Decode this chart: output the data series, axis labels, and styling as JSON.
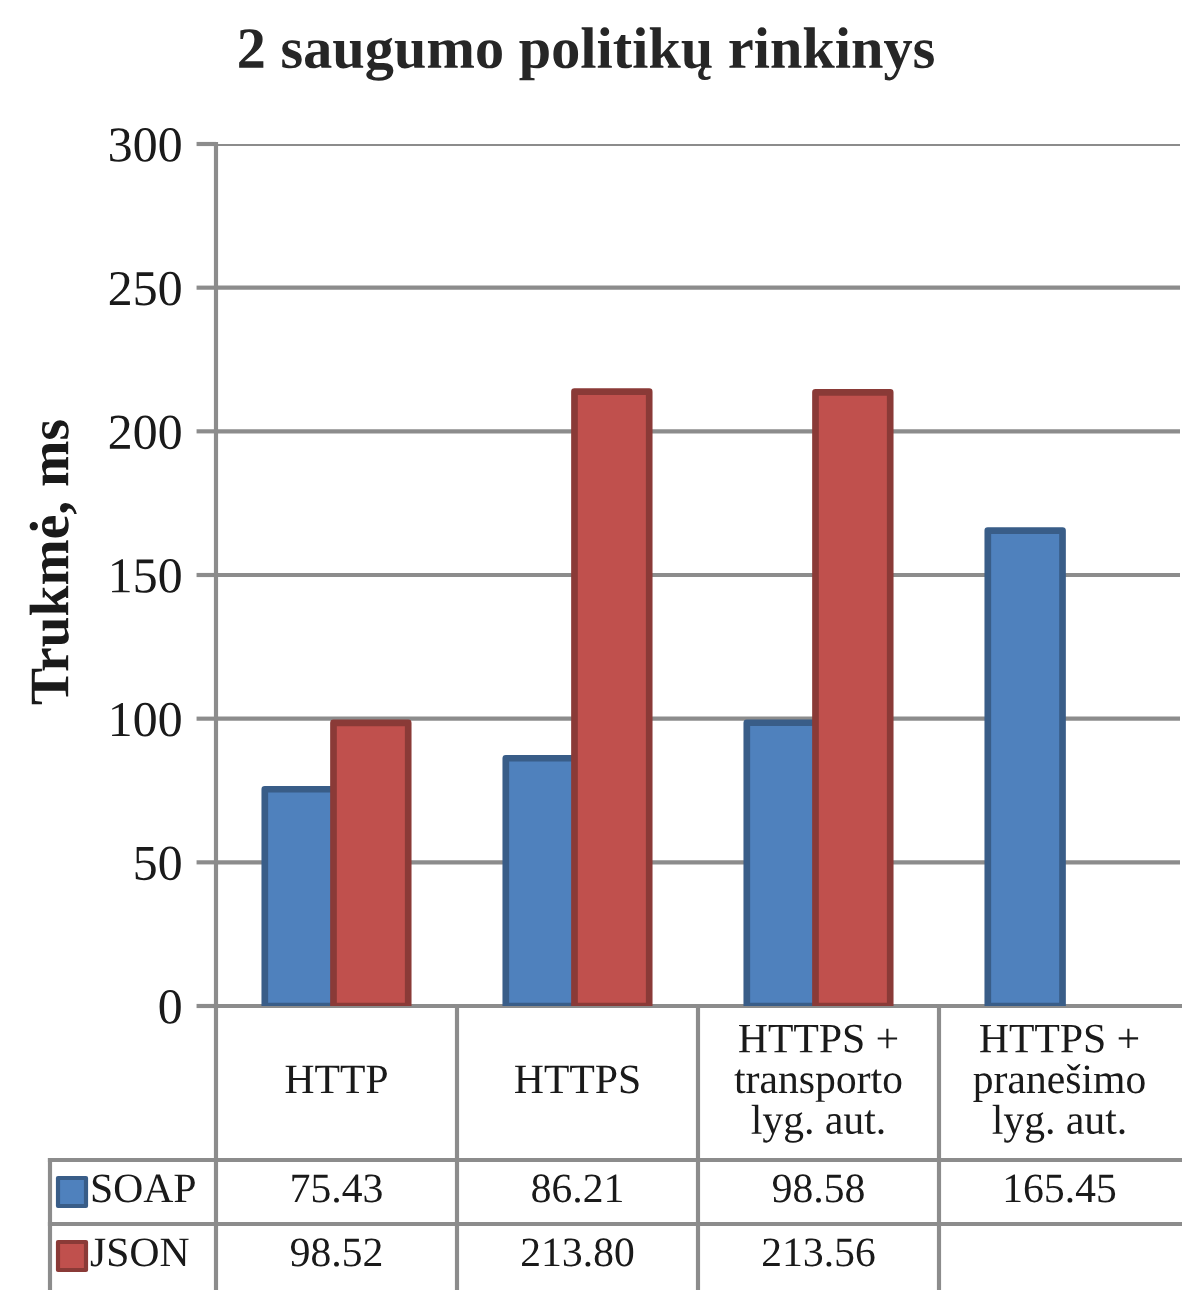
{
  "chart_data": {
    "type": "bar",
    "title": "2 saugumo politikų rinkinys",
    "ylabel": "Trukmė, ms",
    "categories": [
      "HTTP",
      "HTTPS",
      "HTTPS +\ntransporto\nlyg. aut.",
      "HTTPS +\npranešimo\nlyg. aut."
    ],
    "series": [
      {
        "name": "SOAP",
        "color": "#4f81bd",
        "values": [
          75.43,
          86.21,
          98.58,
          165.45
        ],
        "value_labels": [
          "75.43",
          "86.21",
          "98.58",
          "165.45"
        ]
      },
      {
        "name": "JSON",
        "color": "#c0504d",
        "values": [
          98.52,
          213.8,
          213.56,
          null
        ],
        "value_labels": [
          "98.52",
          "213.80",
          "213.56",
          null
        ]
      }
    ],
    "ylim": [
      0,
      300
    ],
    "yticks": [
      0,
      50,
      100,
      150,
      200,
      250,
      300
    ],
    "grid": "y",
    "legend": "bottom left"
  }
}
